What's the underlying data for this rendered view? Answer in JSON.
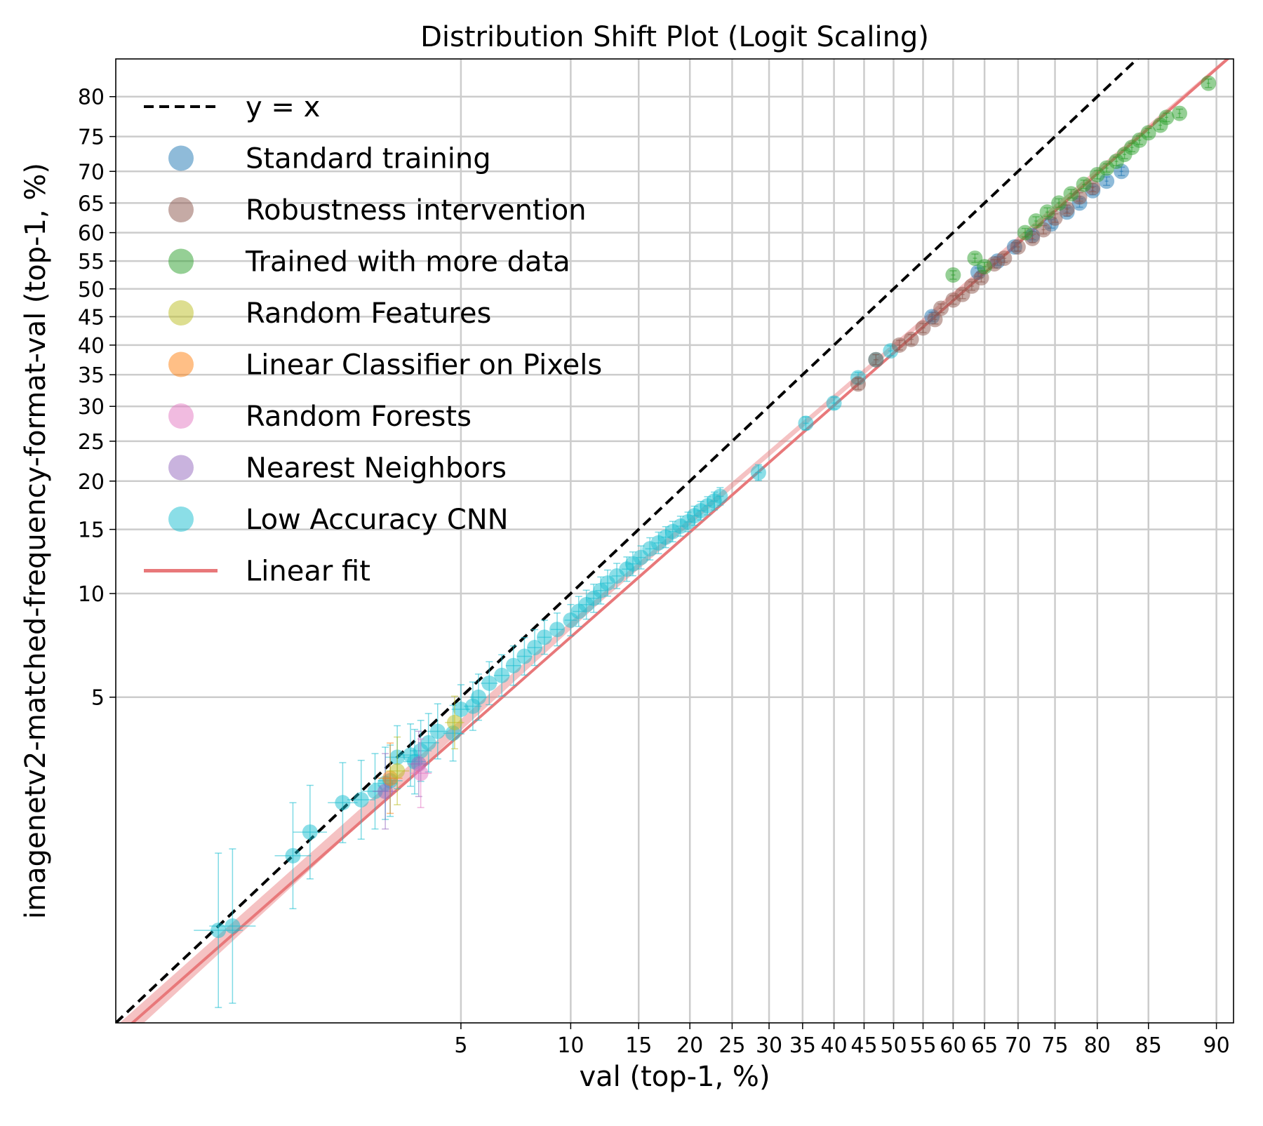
{
  "chart_data": {
    "type": "scatter",
    "title": "Distribution Shift Plot (Logit Scaling)",
    "xlabel": "val (top-1, %)",
    "ylabel": "imagenetv2-matched-frequency-format-val (top-1, %)",
    "scale": "logit",
    "xlim": [
      0.5,
      91
    ],
    "ylim": [
      0.5,
      84
    ],
    "x_ticks": [
      "5",
      "10",
      "15",
      "20",
      "25",
      "30",
      "35",
      "40",
      "45",
      "50",
      "55",
      "60",
      "65",
      "70",
      "75",
      "80",
      "85",
      "90"
    ],
    "x_tick_values": [
      5,
      10,
      15,
      20,
      25,
      30,
      35,
      40,
      45,
      50,
      55,
      60,
      65,
      70,
      75,
      80,
      85,
      90
    ],
    "y_ticks": [
      "5",
      "10",
      "15",
      "20",
      "25",
      "30",
      "35",
      "40",
      "45",
      "50",
      "55",
      "60",
      "65",
      "70",
      "75",
      "80"
    ],
    "y_tick_values": [
      5,
      10,
      15,
      20,
      25,
      30,
      35,
      40,
      45,
      50,
      55,
      60,
      65,
      70,
      75,
      80
    ],
    "grid": true,
    "legend": {
      "position": "top-left",
      "entries": [
        {
          "label": "y = x",
          "kind": "dashed",
          "color": "#000000"
        },
        {
          "label": "Standard training",
          "kind": "marker",
          "color": "#1f77b4"
        },
        {
          "label": "Robustness intervention",
          "kind": "marker",
          "color": "#8c564b"
        },
        {
          "label": "Trained with more data",
          "kind": "marker",
          "color": "#2ca02c"
        },
        {
          "label": "Random Features",
          "kind": "marker",
          "color": "#bcbd22"
        },
        {
          "label": "Linear Classifier on Pixels",
          "kind": "marker",
          "color": "#ff7f0e"
        },
        {
          "label": "Random Forests",
          "kind": "marker",
          "color": "#e377c2"
        },
        {
          "label": "Nearest Neighbors",
          "kind": "marker",
          "color": "#9467bd"
        },
        {
          "label": "Low Accuracy CNN",
          "kind": "marker",
          "color": "#17becf"
        },
        {
          "label": "Linear fit",
          "kind": "line",
          "color": "#e8787a"
        }
      ]
    },
    "reference_line": {
      "label": "y = x",
      "color": "#000000",
      "style": "dashed"
    },
    "linear_fit": {
      "label": "Linear fit",
      "color": "#e8787a",
      "points": [
        [
          0.5,
          0.45
        ],
        [
          91,
          84.5
        ]
      ]
    },
    "series": [
      {
        "name": "Low Accuracy CNN",
        "color": "#17becf",
        "points": [
          [
            1.0,
            0.97
          ],
          [
            1.1,
            1.0
          ],
          [
            1.65,
            1.65
          ],
          [
            1.85,
            1.95
          ],
          [
            2.3,
            2.4
          ],
          [
            2.6,
            2.45
          ],
          [
            2.85,
            2.6
          ],
          [
            3.05,
            2.75
          ],
          [
            3.15,
            2.8
          ],
          [
            3.3,
            3.3
          ],
          [
            3.6,
            3.35
          ],
          [
            3.7,
            3.2
          ],
          [
            3.85,
            3.45
          ],
          [
            4.05,
            3.65
          ],
          [
            4.3,
            3.95
          ],
          [
            4.75,
            3.9
          ],
          [
            5.0,
            4.6
          ],
          [
            5.4,
            4.7
          ],
          [
            5.6,
            5.0
          ],
          [
            6.0,
            5.5
          ],
          [
            6.5,
            5.8
          ],
          [
            7.0,
            6.2
          ],
          [
            7.5,
            6.6
          ],
          [
            8.0,
            7.0
          ],
          [
            8.5,
            7.5
          ],
          [
            9.2,
            7.9
          ],
          [
            10.0,
            8.4
          ],
          [
            10.5,
            8.9
          ],
          [
            11.0,
            9.3
          ],
          [
            11.5,
            9.7
          ],
          [
            12.0,
            10.2
          ],
          [
            12.5,
            10.7
          ],
          [
            13.2,
            11.2
          ],
          [
            14.0,
            11.7
          ],
          [
            14.5,
            12.1
          ],
          [
            15.2,
            12.6
          ],
          [
            16.0,
            13.3
          ],
          [
            16.8,
            13.8
          ],
          [
            17.5,
            14.3
          ],
          [
            18.2,
            14.8
          ],
          [
            19.0,
            15.3
          ],
          [
            19.8,
            15.7
          ],
          [
            20.5,
            16.3
          ],
          [
            21.2,
            16.8
          ],
          [
            22.0,
            17.3
          ],
          [
            22.8,
            17.8
          ],
          [
            23.5,
            18.3
          ],
          [
            28.5,
            21.0
          ],
          [
            35.5,
            27.5
          ],
          [
            40.0,
            30.5
          ],
          [
            44.0,
            34.5
          ],
          [
            47.0,
            37.5
          ],
          [
            49.5,
            39.0
          ]
        ]
      },
      {
        "name": "Nearest Neighbors",
        "color": "#9467bd",
        "points": [
          [
            3.05,
            2.6
          ],
          [
            3.8,
            3.15
          ]
        ]
      },
      {
        "name": "Linear Classifier on Pixels",
        "color": "#ff7f0e",
        "points": [
          [
            3.15,
            2.85
          ]
        ]
      },
      {
        "name": "Random Forests",
        "color": "#e377c2",
        "points": [
          [
            3.85,
            2.95
          ]
        ]
      },
      {
        "name": "Random Features",
        "color": "#bcbd22",
        "points": [
          [
            4.8,
            4.2
          ],
          [
            3.3,
            3.0
          ]
        ]
      },
      {
        "name": "Standard training",
        "color": "#1f77b4",
        "points": [
          [
            56.5,
            45.0
          ],
          [
            64.0,
            53.0
          ],
          [
            67.0,
            55.0
          ],
          [
            69.5,
            57.5
          ],
          [
            72.0,
            59.5
          ],
          [
            74.5,
            61.5
          ],
          [
            76.5,
            63.5
          ],
          [
            78.0,
            65.0
          ],
          [
            79.5,
            67.0
          ],
          [
            81.0,
            68.5
          ],
          [
            82.5,
            70.0
          ]
        ]
      },
      {
        "name": "Robustness intervention",
        "color": "#8c564b",
        "points": [
          [
            44.0,
            33.5
          ],
          [
            47.0,
            37.5
          ],
          [
            51.0,
            40.0
          ],
          [
            53.0,
            41.0
          ],
          [
            55.0,
            43.0
          ],
          [
            57.0,
            44.5
          ],
          [
            58.0,
            46.5
          ],
          [
            60.0,
            48.0
          ],
          [
            61.5,
            49.0
          ],
          [
            63.0,
            50.5
          ],
          [
            64.5,
            52.0
          ],
          [
            66.5,
            54.5
          ],
          [
            68.0,
            55.5
          ],
          [
            70.0,
            57.5
          ],
          [
            72.0,
            59.0
          ],
          [
            73.5,
            60.5
          ],
          [
            75.0,
            62.5
          ],
          [
            76.5,
            64.0
          ],
          [
            78.0,
            66.0
          ],
          [
            79.5,
            67.5
          ]
        ]
      },
      {
        "name": "Trained with more data",
        "color": "#2ca02c",
        "points": [
          [
            60.0,
            52.5
          ],
          [
            63.5,
            55.5
          ],
          [
            65.0,
            54.0
          ],
          [
            71.0,
            60.0
          ],
          [
            72.5,
            62.0
          ],
          [
            74.0,
            63.5
          ],
          [
            75.5,
            65.0
          ],
          [
            77.0,
            66.5
          ],
          [
            78.5,
            68.0
          ],
          [
            80.0,
            69.5
          ],
          [
            81.0,
            70.5
          ],
          [
            82.0,
            71.5
          ],
          [
            82.8,
            72.5
          ],
          [
            83.5,
            73.5
          ],
          [
            84.2,
            74.5
          ],
          [
            85.0,
            75.5
          ],
          [
            86.0,
            76.5
          ],
          [
            86.5,
            77.5
          ],
          [
            87.5,
            78.0
          ],
          [
            89.5,
            81.5
          ]
        ]
      }
    ]
  }
}
